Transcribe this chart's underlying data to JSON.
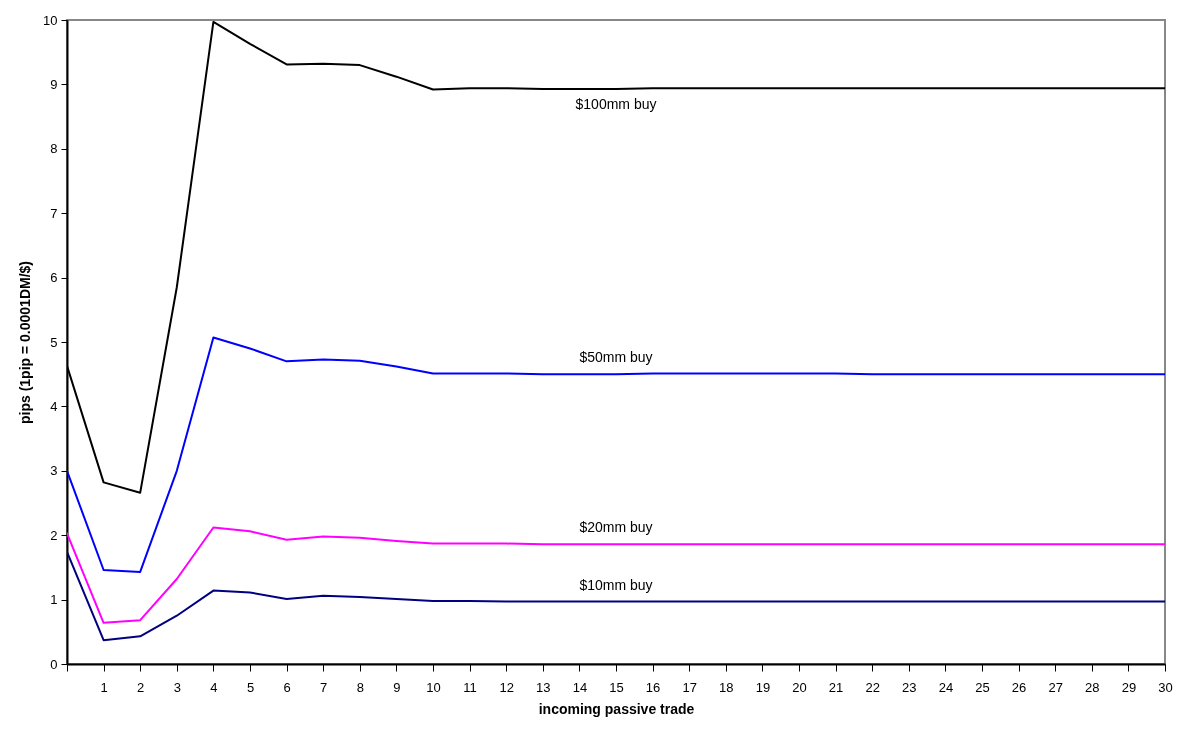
{
  "chart_data": {
    "type": "line",
    "xlabel": "incoming passive trade",
    "ylabel": "pips (1pip = 0.0001DM/$)",
    "x": [
      0,
      1,
      2,
      3,
      4,
      5,
      6,
      7,
      8,
      9,
      10,
      11,
      12,
      13,
      14,
      15,
      16,
      17,
      18,
      19,
      20,
      21,
      22,
      23,
      24,
      25,
      26,
      27,
      28,
      29,
      30
    ],
    "series": [
      {
        "name": "$100mm buy",
        "color": "#000000",
        "values": [
          4.63,
          2.82,
          2.66,
          5.85,
          9.97,
          9.63,
          9.31,
          9.32,
          9.3,
          9.12,
          8.92,
          8.94,
          8.94,
          8.93,
          8.93,
          8.93,
          8.94,
          8.94,
          8.94,
          8.94,
          8.94,
          8.94,
          8.94,
          8.94,
          8.94,
          8.94,
          8.94,
          8.94,
          8.94,
          8.94,
          8.94
        ]
      },
      {
        "name": "$50mm buy",
        "color": "#0000ff",
        "values": [
          3.0,
          1.46,
          1.43,
          3.0,
          5.07,
          4.9,
          4.7,
          4.73,
          4.71,
          4.62,
          4.51,
          4.51,
          4.51,
          4.5,
          4.5,
          4.5,
          4.51,
          4.51,
          4.51,
          4.51,
          4.51,
          4.51,
          4.5,
          4.5,
          4.5,
          4.5,
          4.5,
          4.5,
          4.5,
          4.5,
          4.5
        ]
      },
      {
        "name": "$20mm buy",
        "color": "#ff00ff",
        "values": [
          2.03,
          0.64,
          0.68,
          1.32,
          2.12,
          2.06,
          1.93,
          1.98,
          1.96,
          1.91,
          1.87,
          1.87,
          1.87,
          1.86,
          1.86,
          1.86,
          1.86,
          1.86,
          1.86,
          1.86,
          1.86,
          1.86,
          1.86,
          1.86,
          1.86,
          1.86,
          1.86,
          1.86,
          1.86,
          1.86,
          1.86
        ]
      },
      {
        "name": "$10mm buy",
        "color": "#000080",
        "values": [
          1.74,
          0.37,
          0.43,
          0.75,
          1.14,
          1.11,
          1.01,
          1.06,
          1.04,
          1.01,
          0.98,
          0.98,
          0.97,
          0.97,
          0.97,
          0.97,
          0.97,
          0.97,
          0.97,
          0.97,
          0.97,
          0.97,
          0.97,
          0.97,
          0.97,
          0.97,
          0.97,
          0.97,
          0.97,
          0.97,
          0.97
        ]
      }
    ],
    "xlim": [
      0,
      30
    ],
    "xticks": [
      {
        "value": 0,
        "label": null
      },
      1,
      2,
      3,
      4,
      5,
      6,
      7,
      8,
      9,
      10,
      11,
      12,
      13,
      14,
      15,
      16,
      17,
      18,
      19,
      20,
      21,
      22,
      23,
      24,
      25,
      26,
      27,
      28,
      29,
      30
    ],
    "ylim": [
      0,
      10
    ],
    "yticks": [
      0,
      1,
      2,
      3,
      4,
      5,
      6,
      7,
      8,
      9,
      10
    ],
    "grid": false,
    "legend": false,
    "marker": "none",
    "line_style": "solid"
  }
}
